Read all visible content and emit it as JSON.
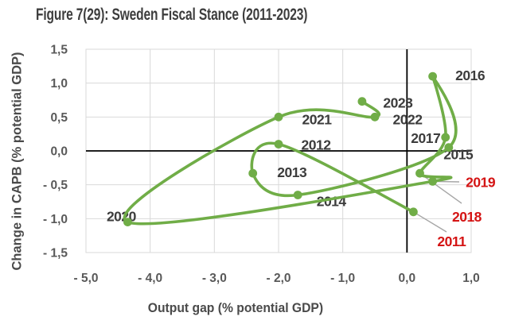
{
  "chart_data": {
    "type": "scatter",
    "title": "Figure 7(29): Sweden Fiscal Stance (2011-2023)",
    "xlabel": "Output gap (% potential GDP)",
    "ylabel": "Change in CAPB (% potential GDP)",
    "xlim": [
      -5,
      1
    ],
    "ylim": [
      -1.5,
      1.5
    ],
    "grid": true,
    "line_style": "smooth",
    "x_ticks": [
      {
        "value": -5,
        "label": "- 5,0"
      },
      {
        "value": -4,
        "label": "- 4,0"
      },
      {
        "value": -3,
        "label": "- 3,0"
      },
      {
        "value": -2,
        "label": "- 2,0"
      },
      {
        "value": -1,
        "label": "- 1,0"
      },
      {
        "value": 0,
        "label": "0,0"
      },
      {
        "value": 1,
        "label": "1,0"
      }
    ],
    "y_ticks": [
      {
        "value": 1.5,
        "label": "1,5"
      },
      {
        "value": 1.0,
        "label": "1,0"
      },
      {
        "value": 0.5,
        "label": "0,5"
      },
      {
        "value": 0.0,
        "label": "0,0"
      },
      {
        "value": -0.5,
        "label": "- 0,5"
      },
      {
        "value": -1.0,
        "label": "- 1,0"
      },
      {
        "value": -1.5,
        "label": "- 1,5"
      }
    ],
    "points": [
      {
        "year": "2011",
        "x": 0.1,
        "y": -0.9,
        "red": true,
        "leader": true
      },
      {
        "year": "2012",
        "x": -2.0,
        "y": 0.1,
        "red": false,
        "leader": false
      },
      {
        "year": "2013",
        "x": -2.4,
        "y": -0.33,
        "red": false,
        "leader": false
      },
      {
        "year": "2014",
        "x": -1.7,
        "y": -0.65,
        "red": false,
        "leader": false
      },
      {
        "year": "2015",
        "x": 0.65,
        "y": 0.05,
        "red": false,
        "leader": false
      },
      {
        "year": "2016",
        "x": 0.4,
        "y": 1.1,
        "red": false,
        "leader": false
      },
      {
        "year": "2017",
        "x": 0.6,
        "y": 0.2,
        "red": false,
        "leader": false
      },
      {
        "year": "2018",
        "x": 0.2,
        "y": -0.33,
        "red": true,
        "leader": true
      },
      {
        "year": "2019",
        "x": 0.4,
        "y": -0.45,
        "red": true,
        "leader": true
      },
      {
        "year": "2020",
        "x": -4.35,
        "y": -1.05,
        "red": false,
        "leader": false
      },
      {
        "year": "2021",
        "x": -2.0,
        "y": 0.5,
        "red": false,
        "leader": false
      },
      {
        "year": "2022",
        "x": -0.5,
        "y": 0.5,
        "red": false,
        "leader": false
      },
      {
        "year": "2023",
        "x": -0.7,
        "y": 0.73,
        "red": false,
        "leader": false
      }
    ],
    "colors": {
      "line": "#70AD47",
      "grid": "#D9D9D9",
      "axis": "#000000",
      "leader": "#A6A6A6",
      "tick": "#595959",
      "year": "#3C3C3C",
      "year_red": "#D41414",
      "title": "#3D3D3D"
    }
  }
}
